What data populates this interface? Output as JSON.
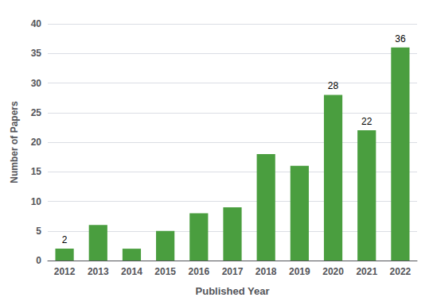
{
  "chart_data": {
    "type": "bar",
    "categories": [
      "2012",
      "2013",
      "2014",
      "2015",
      "2016",
      "2017",
      "2018",
      "2019",
      "2020",
      "2021",
      "2022"
    ],
    "values": [
      2,
      6,
      2,
      5,
      8,
      9,
      18,
      16,
      28,
      22,
      36
    ],
    "color": "#4a9e3f",
    "xlabel": "Published Year",
    "ylabel": "Number of Papers",
    "ylim": [
      0,
      40
    ],
    "yticks": [
      0,
      5,
      10,
      15,
      20,
      25,
      30,
      35,
      40
    ],
    "grid": true,
    "data_labels": true,
    "value_labels": [
      "2",
      null,
      null,
      null,
      null,
      null,
      null,
      null,
      "28",
      "22",
      "36"
    ]
  }
}
